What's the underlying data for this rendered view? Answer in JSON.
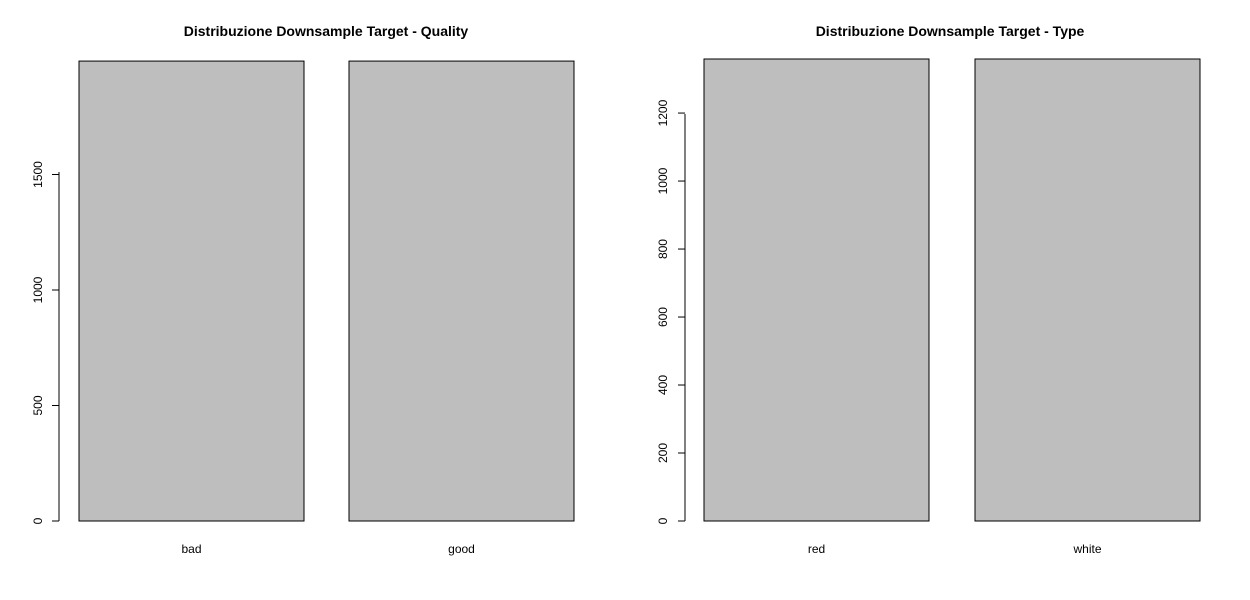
{
  "bar_color": "#bebebe",
  "chart_data": [
    {
      "type": "bar",
      "title": "Distribuzione Downsample Target - Quality",
      "categories": [
        "bad",
        "good"
      ],
      "values": [
        1991,
        1991
      ],
      "ylim": [
        0,
        2000
      ],
      "yticks": [
        0,
        500,
        1000,
        1500
      ],
      "xlabel": "",
      "ylabel": "",
      "grid": false
    },
    {
      "type": "bar",
      "title": "Distribuzione Downsample Target - Type",
      "categories": [
        "red",
        "white"
      ],
      "values": [
        1359,
        1359
      ],
      "ylim": [
        0,
        1359
      ],
      "yticks": [
        0,
        200,
        400,
        600,
        800,
        1000,
        1200
      ],
      "xlabel": "",
      "ylabel": "",
      "grid": false
    }
  ]
}
